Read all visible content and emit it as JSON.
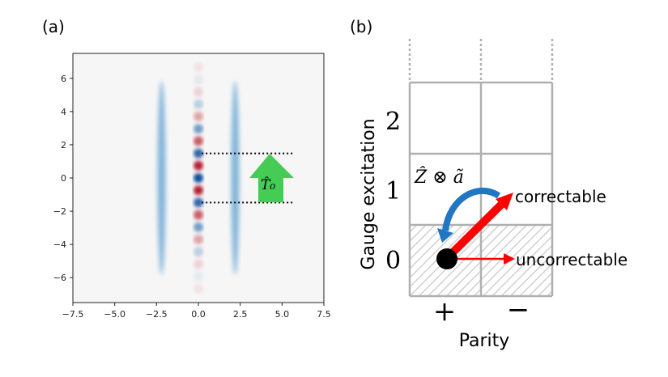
{
  "panel_a": {
    "label": "(a)",
    "x_ticks": [
      "−7.5",
      "−5.0",
      "−2.5",
      "0.0",
      "2.5",
      "5.0",
      "7.5"
    ],
    "y_ticks": [
      "6",
      "4",
      "2",
      "0",
      "−2",
      "−4",
      "−6"
    ],
    "x_tick_values": [
      -7.5,
      -5,
      -2.5,
      0,
      2.5,
      5,
      7.5
    ],
    "y_tick_values": [
      6,
      4,
      2,
      0,
      -2,
      -4,
      -6
    ],
    "xlim": [
      -7.5,
      7.5
    ],
    "ylim": [
      -7.5,
      7.5
    ],
    "colormap": "RdBu",
    "ridges_x": [
      -2.2,
      2.2
    ],
    "spot_spacing": 0.74,
    "dotted_lines_y": [
      1.48,
      -1.48
    ],
    "operator_label": "T̂₀",
    "arrow_color": "#44cc55"
  },
  "panel_b": {
    "label": "(b)",
    "y_axis_label": "Gauge excitation",
    "x_axis_label": "Parity",
    "row_labels": [
      "2",
      "1",
      "0"
    ],
    "column_labels": [
      "+",
      "−"
    ],
    "operator_label": "Ẑ ⊗ ã",
    "correctable_label": "correctable",
    "uncorrectable_label": "uncorrectable",
    "colors": {
      "grid": "#b0b0b0",
      "red": "#ff0000",
      "blue": "#1f77c4"
    }
  }
}
